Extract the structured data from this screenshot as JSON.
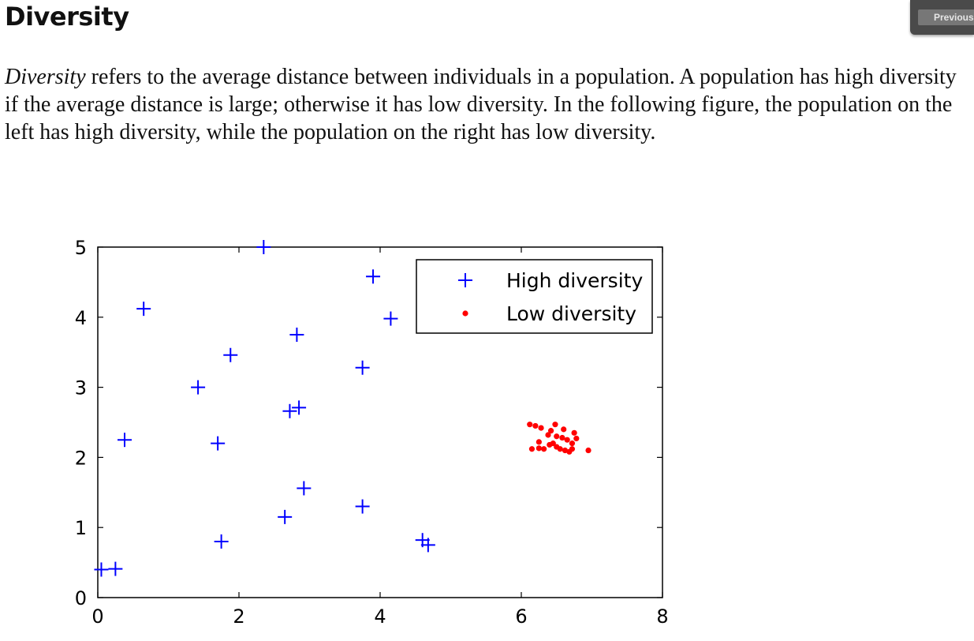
{
  "page": {
    "title": "Diversity",
    "nav": {
      "previous_label": "Previous"
    },
    "paragraph": {
      "term": "Diversity",
      "text": " refers to the average distance between individuals in a population. A population has high diversity if the average distance is large; otherwise it has low diversity. In the following figure, the population on the left has high diversity, while the population on the right has low diversity."
    }
  },
  "colors": {
    "high": "#0000ff",
    "low": "#ff0000",
    "nav_bg": "#4a4a4a"
  },
  "chart_data": {
    "type": "scatter",
    "title": "",
    "xlabel": "",
    "ylabel": "",
    "xlim": [
      0,
      8
    ],
    "ylim": [
      0,
      5
    ],
    "xticks": [
      0,
      2,
      4,
      6,
      8
    ],
    "yticks": [
      0,
      1,
      2,
      3,
      4,
      5
    ],
    "grid": false,
    "legend_position": "top-right",
    "series": [
      {
        "name": "High diversity",
        "marker": "plus",
        "color": "#0000ff",
        "points": [
          [
            2.35,
            5.0
          ],
          [
            3.9,
            4.58
          ],
          [
            0.65,
            4.12
          ],
          [
            4.15,
            3.98
          ],
          [
            2.82,
            3.75
          ],
          [
            1.88,
            3.46
          ],
          [
            3.75,
            3.28
          ],
          [
            1.42,
            3.0
          ],
          [
            2.85,
            2.71
          ],
          [
            2.72,
            2.66
          ],
          [
            0.38,
            2.25
          ],
          [
            1.7,
            2.2
          ],
          [
            2.92,
            1.56
          ],
          [
            3.75,
            1.3
          ],
          [
            2.65,
            1.15
          ],
          [
            1.75,
            0.8
          ],
          [
            4.6,
            0.82
          ],
          [
            4.68,
            0.75
          ],
          [
            0.05,
            0.4
          ],
          [
            0.25,
            0.41
          ]
        ]
      },
      {
        "name": "Low diversity",
        "marker": "dot",
        "color": "#ff0000",
        "points": [
          [
            6.12,
            2.47
          ],
          [
            6.2,
            2.45
          ],
          [
            6.28,
            2.42
          ],
          [
            6.48,
            2.47
          ],
          [
            6.42,
            2.38
          ],
          [
            6.6,
            2.4
          ],
          [
            6.75,
            2.35
          ],
          [
            6.5,
            2.3
          ],
          [
            6.58,
            2.28
          ],
          [
            6.38,
            2.32
          ],
          [
            6.25,
            2.22
          ],
          [
            6.45,
            2.2
          ],
          [
            6.65,
            2.25
          ],
          [
            6.78,
            2.27
          ],
          [
            6.72,
            2.2
          ],
          [
            6.15,
            2.12
          ],
          [
            6.25,
            2.13
          ],
          [
            6.32,
            2.12
          ],
          [
            6.5,
            2.15
          ],
          [
            6.55,
            2.12
          ],
          [
            6.62,
            2.1
          ],
          [
            6.68,
            2.08
          ],
          [
            6.72,
            2.12
          ],
          [
            6.95,
            2.1
          ],
          [
            6.4,
            2.18
          ]
        ]
      }
    ]
  }
}
